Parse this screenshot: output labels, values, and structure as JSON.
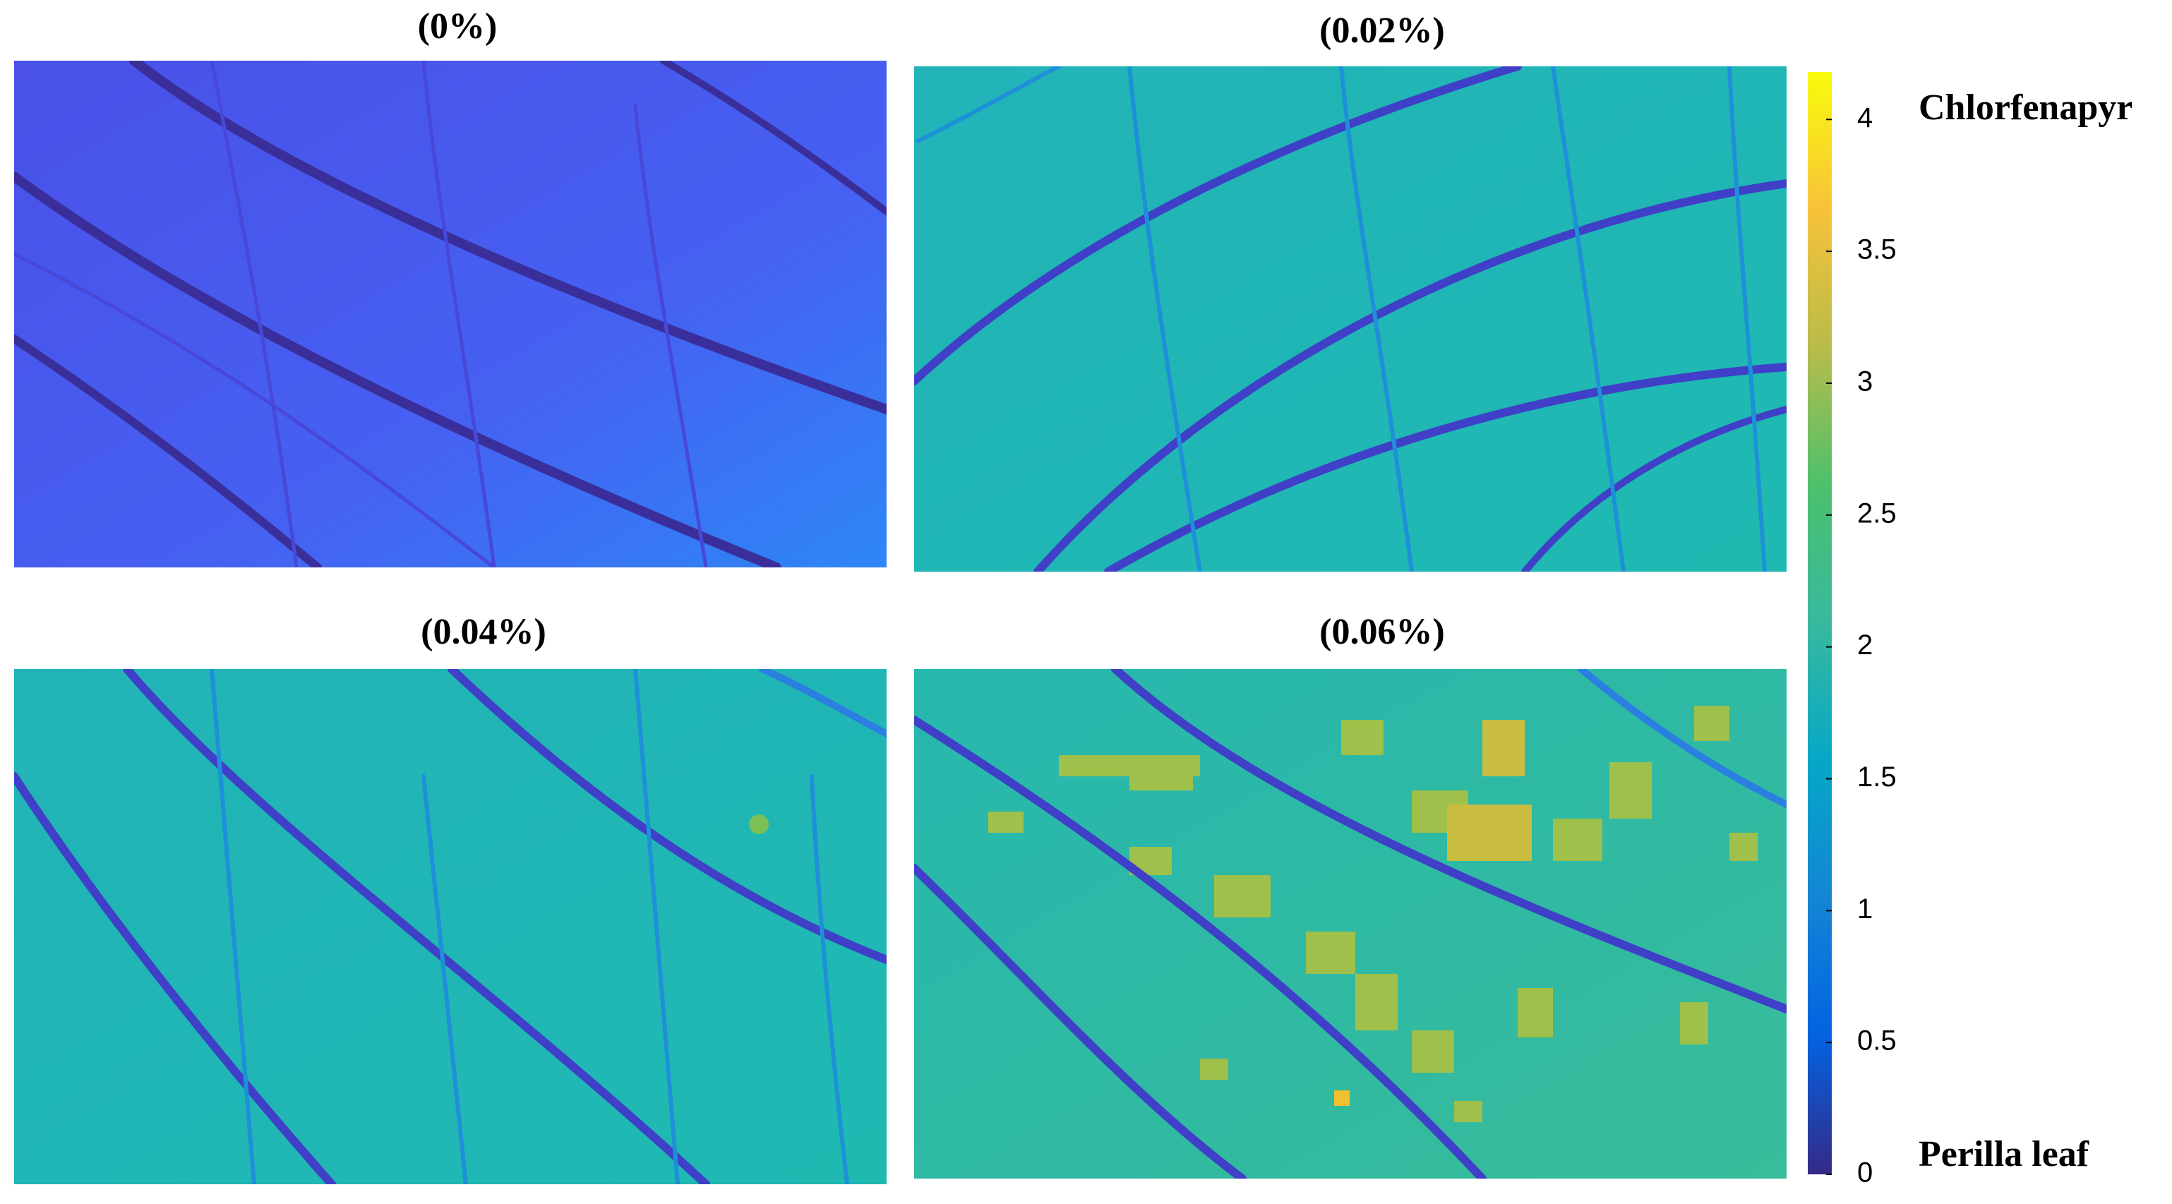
{
  "chart_data": {
    "type": "heatmap",
    "panels": [
      {
        "title": "(0%)"
      },
      {
        "title": "(0.02%)"
      },
      {
        "title": "(0.04%)"
      },
      {
        "title": "(0.06%)"
      }
    ],
    "colorbar": {
      "ylim": [
        0,
        4.18
      ],
      "yticks": [
        0,
        0.5,
        1,
        1.5,
        2,
        2.5,
        3,
        3.5,
        4
      ]
    },
    "annotations": [
      "Chlorfenapyr",
      "Perilla leaf"
    ]
  }
}
